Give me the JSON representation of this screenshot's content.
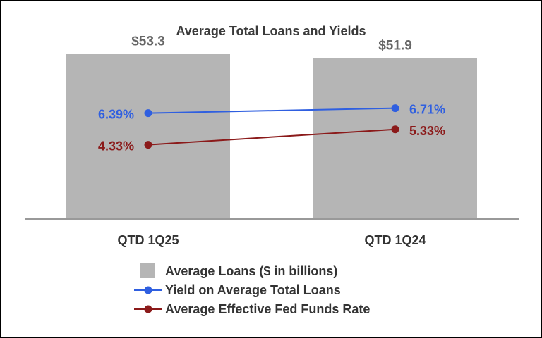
{
  "chart_data": {
    "type": "bar",
    "title": "Average Total Loans and Yields",
    "categories": [
      "QTD 1Q25",
      "QTD 1Q24"
    ],
    "bars": {
      "name": "Average Loans ($ in billions)",
      "values": [
        53.3,
        51.9
      ],
      "labels": [
        "$53.3",
        "$51.9"
      ],
      "color": "#b5b5b5"
    },
    "lines": [
      {
        "name": "Yield on Average Total Loans",
        "values": [
          6.39,
          6.71
        ],
        "labels": [
          "6.39%",
          "6.71%"
        ],
        "color": "#2f5fe0"
      },
      {
        "name": "Average Effective Fed Funds Rate",
        "values": [
          4.33,
          5.33
        ],
        "labels": [
          "4.33%",
          "5.33%"
        ],
        "color": "#8b1a1a"
      }
    ],
    "bar_axis_range": [
      0,
      57
    ],
    "line_axis_range": [
      -0.5,
      11.0
    ],
    "legend_position": "bottom-center"
  }
}
